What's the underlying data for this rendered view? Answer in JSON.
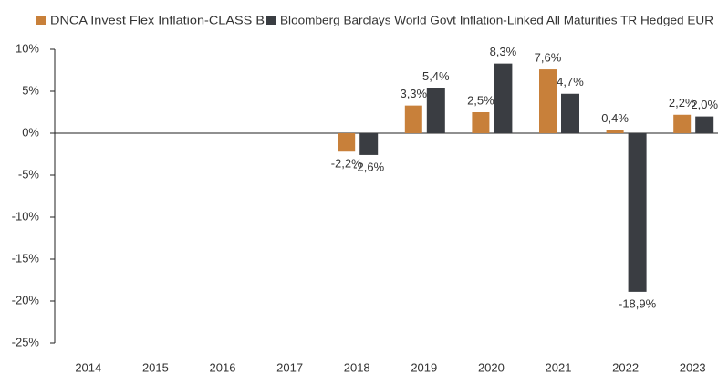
{
  "chart_data": {
    "type": "bar",
    "categories": [
      "2014",
      "2015",
      "2016",
      "2017",
      "2018",
      "2019",
      "2020",
      "2021",
      "2022",
      "2023"
    ],
    "series": [
      {
        "name": "DNCA Invest Flex Inflation-CLASS B",
        "color": "#c8803a",
        "values": [
          null,
          null,
          null,
          null,
          -2.2,
          3.3,
          2.5,
          7.6,
          0.4,
          2.2
        ],
        "value_labels": [
          null,
          null,
          null,
          null,
          "-2,2%",
          "3,3%",
          "2,5%",
          "7,6%",
          "0,4%",
          "2,2%"
        ]
      },
      {
        "name": "Bloomberg Barclays World Govt Inflation-Linked All Maturities TR Hedged EUR",
        "color": "#3a3d42",
        "values": [
          null,
          null,
          null,
          null,
          -2.6,
          5.4,
          8.3,
          4.7,
          -18.9,
          2.0
        ],
        "value_labels": [
          null,
          null,
          null,
          null,
          "-2,6%",
          "5,4%",
          "8,3%",
          "4,7%",
          "-18,9%",
          "2,0%"
        ]
      }
    ],
    "ylim": [
      -25,
      10
    ],
    "yticks": [
      {
        "value": 10,
        "label": "10%"
      },
      {
        "value": 5,
        "label": "5%"
      },
      {
        "value": 0,
        "label": "0%"
      },
      {
        "value": -5,
        "label": "-5%"
      },
      {
        "value": -10,
        "label": "-10%"
      },
      {
        "value": -15,
        "label": "-15%"
      },
      {
        "value": -20,
        "label": "-20%"
      },
      {
        "value": -25,
        "label": "-25%"
      }
    ],
    "grid": false
  }
}
